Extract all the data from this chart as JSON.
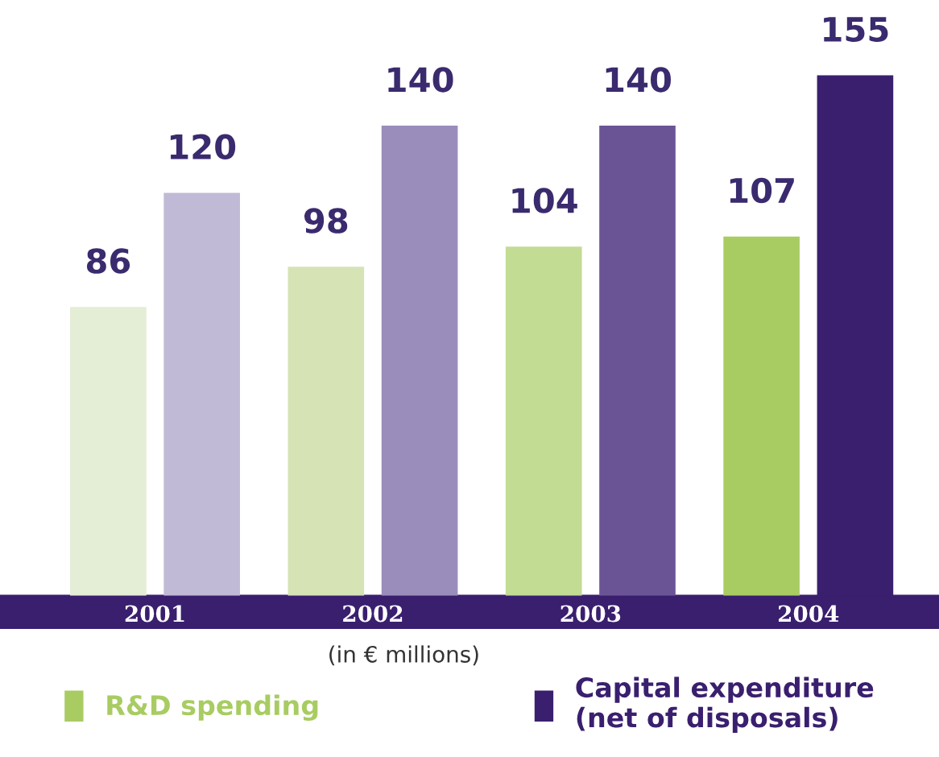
{
  "chart_data": {
    "type": "bar",
    "categories": [
      "2001",
      "2002",
      "2003",
      "2004"
    ],
    "series": [
      {
        "name": "R&D spending",
        "color": "#a8cc62",
        "colors": [
          "#e4edd5",
          "#d5e3b5",
          "#c2dc94",
          "#a8cc62"
        ],
        "values": [
          86,
          98,
          104,
          107
        ]
      },
      {
        "name": "Capital expenditure\n(net of disposals)",
        "color": "#3a1f6f",
        "colors": [
          "#c0bad6",
          "#9a8dbb",
          "#6b5496",
          "#3a1f6f"
        ],
        "values": [
          120,
          140,
          140,
          155
        ]
      }
    ],
    "data_labels": true,
    "legend": "bottom",
    "grid": false,
    "annotations": [
      "(in € millions)"
    ]
  }
}
